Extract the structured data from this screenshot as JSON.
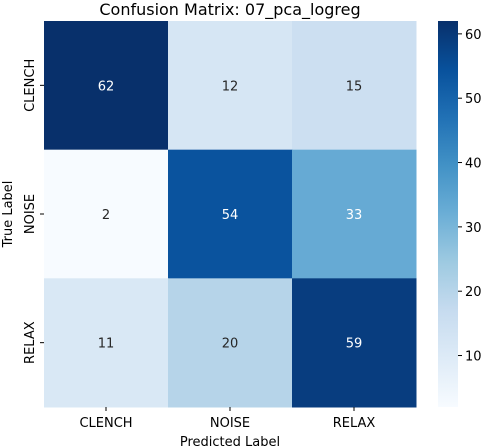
{
  "chart_data": {
    "type": "heatmap",
    "title": "Confusion Matrix: 07_pca_logreg",
    "xlabel": "Predicted Label",
    "ylabel": "True Label",
    "x_categories": [
      "CLENCH",
      "NOISE",
      "RELAX"
    ],
    "y_categories": [
      "CLENCH",
      "NOISE",
      "RELAX"
    ],
    "values": [
      [
        62,
        12,
        15
      ],
      [
        2,
        54,
        33
      ],
      [
        11,
        20,
        59
      ]
    ],
    "colorscale": "Blues",
    "color_range": [
      2,
      62
    ],
    "colorbar_ticks": [
      10,
      20,
      30,
      40,
      50,
      60
    ],
    "colorbar_tick_labels": [
      "10",
      "20",
      "30",
      "40",
      "50",
      "60"
    ]
  }
}
